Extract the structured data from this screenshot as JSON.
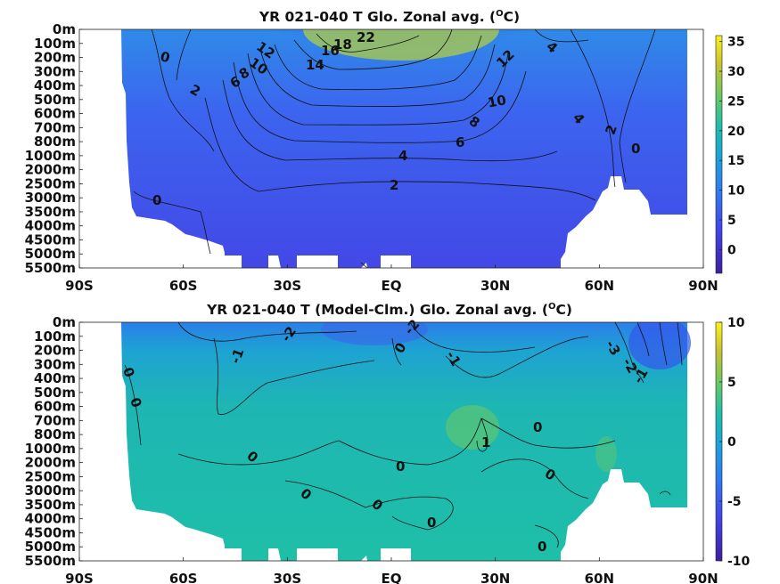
{
  "chart_data": [
    {
      "type": "heatmap",
      "title_prefix": "YR 021-040 T Glo. Zonal avg. (",
      "title_unit_base": "C",
      "title_unit_sup": "O",
      "title_suffix": ")",
      "x_ticks": [
        "90S",
        "60S",
        "30S",
        "EQ",
        "30N",
        "60N",
        "90N"
      ],
      "y_ticks": [
        "0m",
        "100m",
        "200m",
        "300m",
        "400m",
        "500m",
        "600m",
        "700m",
        "800m",
        "1000m",
        "2000m",
        "2500m",
        "3000m",
        "3500m",
        "4000m",
        "4500m",
        "5000m",
        "5500m"
      ],
      "colorbar_ticks": [
        "35",
        "30",
        "25",
        "20",
        "15",
        "10",
        "5",
        "0"
      ],
      "colorbar_range": [
        -4,
        36
      ],
      "contour_labels": [
        "22",
        "18",
        "16",
        "14",
        "12",
        "10",
        "8",
        "6",
        "0",
        "2",
        "12",
        "10",
        "8",
        "6",
        "4",
        "2",
        "0",
        "4",
        "4",
        "2",
        "0"
      ]
    },
    {
      "type": "heatmap",
      "title_prefix": "YR 021-040 T (Model-Clm.) Glo. Zonal avg. (",
      "title_unit_base": "C",
      "title_unit_sup": "O",
      "title_suffix": ")",
      "x_ticks": [
        "90S",
        "60S",
        "30S",
        "EQ",
        "30N",
        "60N",
        "90N"
      ],
      "y_ticks": [
        "0m",
        "100m",
        "200m",
        "300m",
        "400m",
        "500m",
        "600m",
        "700m",
        "800m",
        "1000m",
        "2000m",
        "2500m",
        "3000m",
        "3500m",
        "4000m",
        "4500m",
        "5000m",
        "5500m"
      ],
      "colorbar_ticks": [
        "10",
        "5",
        "0",
        "-5",
        "-10"
      ],
      "colorbar_range": [
        -10,
        10
      ],
      "contour_labels": [
        "-2",
        "-2",
        "-1",
        "0",
        "-1",
        "0",
        "-1",
        "0",
        "1",
        "0",
        "0",
        "0",
        "0",
        "0",
        "0",
        "0",
        "-3",
        "-2",
        "-1",
        "0"
      ]
    }
  ]
}
